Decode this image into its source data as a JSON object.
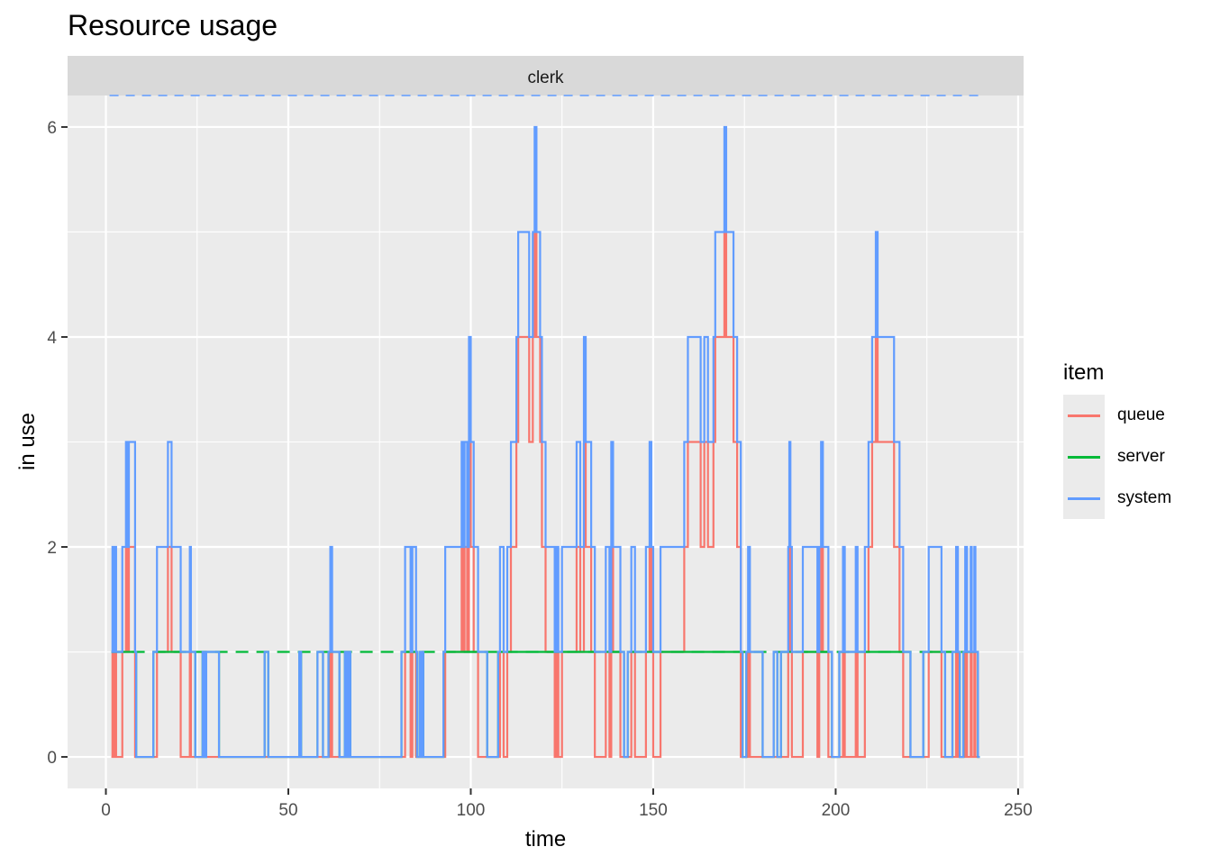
{
  "chart_data": {
    "type": "line",
    "subtype": "step",
    "title": "Resource usage",
    "facet_strip": "clerk",
    "xlabel": "time",
    "ylabel": "in use",
    "xlim": [
      -10.5,
      251.5
    ],
    "ylim": [
      -0.3,
      6.3
    ],
    "x_ticks": [
      0,
      50,
      100,
      150,
      200,
      250
    ],
    "y_ticks": [
      0,
      2,
      4,
      6
    ],
    "grid": true,
    "legend": {
      "title": "item",
      "position": "right",
      "entries": [
        "queue",
        "server",
        "system"
      ]
    },
    "colors": {
      "queue": "#F8766D",
      "server": "#00BA38",
      "system": "#619CFF",
      "capacity": "#619CFF"
    },
    "capacity_line": {
      "y": 6.3,
      "style": "dashed",
      "x_range": [
        1,
        240
      ]
    },
    "series_note": "system is given as step breakpoints [time, value]; queue = max(system-1, 0); server = min(system, 1)",
    "system": [
      [
        1.5,
        1
      ],
      [
        1.8,
        2
      ],
      [
        2.2,
        1
      ],
      [
        2.5,
        2
      ],
      [
        2.8,
        1
      ],
      [
        4.5,
        2
      ],
      [
        5.5,
        3
      ],
      [
        6.0,
        2
      ],
      [
        6.3,
        3
      ],
      [
        8.0,
        1
      ],
      [
        8.3,
        0
      ],
      [
        13,
        1
      ],
      [
        14,
        2
      ],
      [
        17,
        3
      ],
      [
        18,
        2
      ],
      [
        20.5,
        1
      ],
      [
        23,
        2
      ],
      [
        23.3,
        1
      ],
      [
        24.5,
        0
      ],
      [
        26.5,
        1
      ],
      [
        27,
        0
      ],
      [
        27.5,
        1
      ],
      [
        31,
        0
      ],
      [
        43.5,
        1
      ],
      [
        44.5,
        0
      ],
      [
        53,
        1
      ],
      [
        53.5,
        0
      ],
      [
        58,
        1
      ],
      [
        59.5,
        0
      ],
      [
        61,
        1
      ],
      [
        61.5,
        2
      ],
      [
        62,
        1
      ],
      [
        64,
        0
      ],
      [
        65.5,
        1
      ],
      [
        66,
        0
      ],
      [
        66.5,
        1
      ],
      [
        67,
        0
      ],
      [
        81,
        1
      ],
      [
        82,
        2
      ],
      [
        83.5,
        1
      ],
      [
        84,
        2
      ],
      [
        85,
        1
      ],
      [
        85.3,
        0
      ],
      [
        86,
        1
      ],
      [
        86.3,
        0
      ],
      [
        86.6,
        1
      ],
      [
        87,
        0
      ],
      [
        88,
        0
      ],
      [
        92.5,
        1
      ],
      [
        93,
        2
      ],
      [
        97.5,
        3
      ],
      [
        98,
        2
      ],
      [
        98.3,
        3
      ],
      [
        99,
        2
      ],
      [
        99.5,
        4
      ],
      [
        100,
        3
      ],
      [
        100.8,
        2
      ],
      [
        102,
        1
      ],
      [
        104.5,
        0
      ],
      [
        107.5,
        1
      ],
      [
        108,
        2
      ],
      [
        109,
        1
      ],
      [
        110,
        2
      ],
      [
        111,
        3
      ],
      [
        112.5,
        4
      ],
      [
        113,
        5
      ],
      [
        116,
        4
      ],
      [
        117,
        5
      ],
      [
        117.5,
        6
      ],
      [
        118,
        5
      ],
      [
        119,
        4
      ],
      [
        119.5,
        3
      ],
      [
        120.5,
        2
      ],
      [
        123,
        1
      ],
      [
        123.5,
        2
      ],
      [
        124,
        1
      ],
      [
        125,
        2
      ],
      [
        127,
        2
      ],
      [
        129,
        3
      ],
      [
        130,
        2
      ],
      [
        131,
        4
      ],
      [
        131.5,
        3
      ],
      [
        133,
        2
      ],
      [
        134,
        1
      ],
      [
        137,
        2
      ],
      [
        138,
        1
      ],
      [
        138.5,
        3
      ],
      [
        139,
        2
      ],
      [
        141,
        1
      ],
      [
        142,
        0
      ],
      [
        143,
        1
      ],
      [
        144,
        2
      ],
      [
        145,
        1
      ],
      [
        148,
        2
      ],
      [
        149,
        3
      ],
      [
        149.5,
        2
      ],
      [
        150,
        1
      ],
      [
        152,
        2
      ],
      [
        158,
        2
      ],
      [
        158.5,
        3
      ],
      [
        159.5,
        4
      ],
      [
        163,
        3
      ],
      [
        164,
        4
      ],
      [
        165,
        3
      ],
      [
        166.5,
        4
      ],
      [
        167,
        5
      ],
      [
        169.5,
        6
      ],
      [
        170,
        5
      ],
      [
        171,
        5
      ],
      [
        172,
        4
      ],
      [
        173,
        3
      ],
      [
        174,
        1
      ],
      [
        174.5,
        0
      ],
      [
        175.5,
        1
      ],
      [
        176,
        2
      ],
      [
        176.5,
        1
      ],
      [
        180,
        0
      ],
      [
        183,
        1
      ],
      [
        184,
        0
      ],
      [
        185,
        1
      ],
      [
        187,
        2
      ],
      [
        187.3,
        3
      ],
      [
        187.6,
        2
      ],
      [
        188,
        1
      ],
      [
        191,
        2
      ],
      [
        194,
        2
      ],
      [
        195,
        1
      ],
      [
        195.5,
        2
      ],
      [
        196,
        3
      ],
      [
        196.5,
        2
      ],
      [
        198,
        1
      ],
      [
        199,
        0
      ],
      [
        201,
        1
      ],
      [
        202,
        2
      ],
      [
        202.5,
        1
      ],
      [
        205,
        1
      ],
      [
        205.5,
        2
      ],
      [
        206,
        1
      ],
      [
        208,
        2
      ],
      [
        209,
        3
      ],
      [
        210,
        4
      ],
      [
        211,
        5
      ],
      [
        211.5,
        4
      ],
      [
        213,
        4
      ],
      [
        216,
        3
      ],
      [
        217.5,
        2
      ],
      [
        218.5,
        1
      ],
      [
        220.5,
        0
      ],
      [
        224,
        1
      ],
      [
        225.5,
        2
      ],
      [
        229,
        1
      ],
      [
        230,
        0
      ],
      [
        232,
        1
      ],
      [
        233,
        2
      ],
      [
        233.5,
        1
      ],
      [
        234,
        0
      ],
      [
        235,
        1
      ],
      [
        235.5,
        2
      ],
      [
        236,
        1
      ],
      [
        237,
        2
      ],
      [
        237.3,
        1
      ],
      [
        238,
        2
      ],
      [
        238.3,
        1
      ],
      [
        239,
        0
      ]
    ]
  }
}
